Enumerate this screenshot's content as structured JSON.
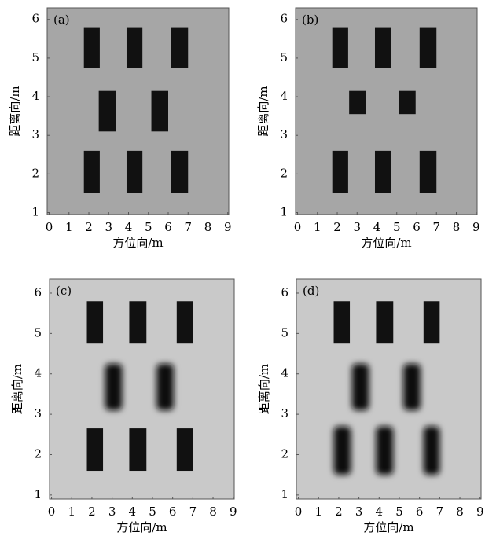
{
  "chart_data": [
    {
      "type": "image",
      "label": "(a)",
      "xlabel": "方位向/m",
      "ylabel": "距离向/m",
      "background": "#a6a6a6",
      "color": "#111111",
      "xlim": [
        -0.1,
        9.05
      ],
      "ylim": [
        0.95,
        6.3
      ],
      "xticks": [
        0,
        1,
        2,
        3,
        4,
        5,
        6,
        7,
        8,
        9
      ],
      "yticks": [
        1,
        2,
        3,
        4,
        5,
        6
      ],
      "rects": [
        {
          "x": [
            1.75,
            2.55
          ],
          "y": [
            4.75,
            5.8
          ],
          "blur": false
        },
        {
          "x": [
            3.9,
            4.7
          ],
          "y": [
            4.75,
            5.8
          ],
          "blur": false
        },
        {
          "x": [
            6.15,
            7.0
          ],
          "y": [
            4.75,
            5.8
          ],
          "blur": false
        },
        {
          "x": [
            2.5,
            3.35
          ],
          "y": [
            3.1,
            4.15
          ],
          "blur": false
        },
        {
          "x": [
            5.15,
            6.0
          ],
          "y": [
            3.1,
            4.15
          ],
          "blur": false
        },
        {
          "x": [
            1.75,
            2.55
          ],
          "y": [
            1.5,
            2.6
          ],
          "blur": false
        },
        {
          "x": [
            3.9,
            4.7
          ],
          "y": [
            1.5,
            2.6
          ],
          "blur": false
        },
        {
          "x": [
            6.15,
            7.0
          ],
          "y": [
            1.5,
            2.6
          ],
          "blur": false
        }
      ]
    },
    {
      "type": "image",
      "label": "(b)",
      "xlabel": "方位向/m",
      "ylabel": "距离向/m",
      "background": "#a6a6a6",
      "color": "#111111",
      "xlim": [
        -0.1,
        9.05
      ],
      "ylim": [
        0.95,
        6.3
      ],
      "xticks": [
        0,
        1,
        2,
        3,
        4,
        5,
        6,
        7,
        8,
        9
      ],
      "yticks": [
        1,
        2,
        3,
        4,
        5,
        6
      ],
      "rects": [
        {
          "x": [
            1.75,
            2.55
          ],
          "y": [
            4.75,
            5.8
          ],
          "blur": false
        },
        {
          "x": [
            3.9,
            4.7
          ],
          "y": [
            4.75,
            5.8
          ],
          "blur": false
        },
        {
          "x": [
            6.15,
            7.0
          ],
          "y": [
            4.75,
            5.8
          ],
          "blur": false
        },
        {
          "x": [
            2.6,
            3.45
          ],
          "y": [
            3.55,
            4.15
          ],
          "blur": false
        },
        {
          "x": [
            5.1,
            5.95
          ],
          "y": [
            3.55,
            4.15
          ],
          "blur": false
        },
        {
          "x": [
            1.75,
            2.55
          ],
          "y": [
            1.5,
            2.6
          ],
          "blur": false
        },
        {
          "x": [
            3.9,
            4.7
          ],
          "y": [
            1.5,
            2.6
          ],
          "blur": false
        },
        {
          "x": [
            6.15,
            7.0
          ],
          "y": [
            1.5,
            2.6
          ],
          "blur": false
        }
      ]
    },
    {
      "type": "image",
      "label": "(c)",
      "xlabel": "方位向/m",
      "ylabel": "距离向/m",
      "background": "#c9c9c9",
      "color": "#111111",
      "xlim": [
        -0.1,
        9.05
      ],
      "ylim": [
        0.9,
        6.35
      ],
      "xticks": [
        0,
        1,
        2,
        3,
        4,
        5,
        6,
        7,
        8,
        9
      ],
      "yticks": [
        1,
        2,
        3,
        4,
        5,
        6
      ],
      "rects": [
        {
          "x": [
            1.75,
            2.55
          ],
          "y": [
            4.75,
            5.8
          ],
          "blur": false
        },
        {
          "x": [
            3.85,
            4.7
          ],
          "y": [
            4.75,
            5.8
          ],
          "blur": false
        },
        {
          "x": [
            6.2,
            7.0
          ],
          "y": [
            4.75,
            5.8
          ],
          "blur": false
        },
        {
          "x": [
            2.65,
            3.5
          ],
          "y": [
            3.1,
            4.25
          ],
          "blur": true
        },
        {
          "x": [
            5.2,
            6.05
          ],
          "y": [
            3.1,
            4.25
          ],
          "blur": true
        },
        {
          "x": [
            1.75,
            2.55
          ],
          "y": [
            1.6,
            2.65
          ],
          "blur": false
        },
        {
          "x": [
            3.85,
            4.7
          ],
          "y": [
            1.6,
            2.65
          ],
          "blur": false
        },
        {
          "x": [
            6.2,
            7.0
          ],
          "y": [
            1.6,
            2.65
          ],
          "blur": false
        }
      ]
    },
    {
      "type": "image",
      "label": "(d)",
      "xlabel": "方位向/m",
      "ylabel": "距离向/m",
      "background": "#c9c9c9",
      "color": "#111111",
      "xlim": [
        -0.1,
        9.05
      ],
      "ylim": [
        0.9,
        6.35
      ],
      "xticks": [
        0,
        1,
        2,
        3,
        4,
        5,
        6,
        7,
        8,
        9
      ],
      "yticks": [
        1,
        2,
        3,
        4,
        5,
        6
      ],
      "rects": [
        {
          "x": [
            1.75,
            2.55
          ],
          "y": [
            4.75,
            5.8
          ],
          "blur": false
        },
        {
          "x": [
            3.85,
            4.7
          ],
          "y": [
            4.75,
            5.8
          ],
          "blur": false
        },
        {
          "x": [
            6.2,
            7.0
          ],
          "y": [
            4.75,
            5.8
          ],
          "blur": false
        },
        {
          "x": [
            2.65,
            3.5
          ],
          "y": [
            3.1,
            4.25
          ],
          "blur": true
        },
        {
          "x": [
            5.2,
            6.05
          ],
          "y": [
            3.1,
            4.25
          ],
          "blur": true
        },
        {
          "x": [
            1.75,
            2.6
          ],
          "y": [
            1.5,
            2.7
          ],
          "blur": true
        },
        {
          "x": [
            3.85,
            4.7
          ],
          "y": [
            1.5,
            2.7
          ],
          "blur": true
        },
        {
          "x": [
            6.2,
            7.0
          ],
          "y": [
            1.5,
            2.7
          ],
          "blur": true
        }
      ]
    }
  ]
}
